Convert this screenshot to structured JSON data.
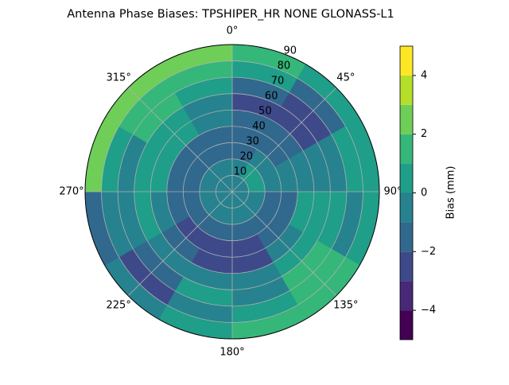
{
  "chart_data": {
    "type": "polar_contour",
    "title": "Antenna Phase Biases: TPSHIPER_HR     NONE GLONASS-L1",
    "theta_bins": [
      0,
      30,
      60,
      90,
      120,
      150,
      180,
      210,
      240,
      270,
      300,
      330,
      360
    ],
    "r_bins": [
      0,
      10,
      20,
      30,
      40,
      50,
      60,
      70,
      80,
      90
    ],
    "z": [
      [
        -0.5,
        -0.5,
        -0.5,
        -0.5,
        -0.5,
        -0.5,
        -0.5,
        -0.5,
        -0.5,
        -0.5,
        -0.5,
        -0.5
      ],
      [
        -0.5,
        0.5,
        0.5,
        -0.5,
        -0.5,
        -0.5,
        -0.5,
        -0.5,
        -0.5,
        -0.5,
        -0.5,
        -0.5
      ],
      [
        -1.5,
        -0.5,
        -0.5,
        -1.5,
        -1.5,
        -1.5,
        -1.5,
        -1.5,
        -1.5,
        -1.5,
        -1.5,
        -1.5
      ],
      [
        -1.5,
        -1.5,
        -0.5,
        -1.5,
        -1.5,
        -2.5,
        -2.5,
        -2.5,
        -1.5,
        -1.5,
        -1.5,
        -1.5
      ],
      [
        -1.5,
        -1.5,
        -0.5,
        0.5,
        -0.5,
        -2.5,
        -2.5,
        -1.5,
        -0.5,
        0.5,
        0.5,
        -0.5
      ],
      [
        -2.5,
        -2.5,
        -0.5,
        0.5,
        0.5,
        -0.5,
        -0.5,
        -0.5,
        0.5,
        0.5,
        0.5,
        -0.5
      ],
      [
        -1.5,
        -2.5,
        -0.5,
        0.5,
        1.5,
        -0.5,
        0.5,
        -1.5,
        -0.5,
        -0.5,
        1.5,
        0.5
      ],
      [
        0.5,
        -1.5,
        0.5,
        -0.5,
        1.5,
        0.5,
        -0.5,
        -2.5,
        -0.5,
        0.5,
        1.5,
        1.5
      ],
      [
        1.5,
        0.5,
        0.5,
        0.5,
        1.5,
        1.5,
        0.5,
        -0.5,
        -1.5,
        2.5,
        2.5,
        2.5
      ]
    ],
    "rlim": [
      0,
      90
    ],
    "rticks": [
      10,
      20,
      30,
      40,
      50,
      60,
      70,
      80,
      90
    ],
    "thetaticks": [
      {
        "value": 0,
        "label": "0°"
      },
      {
        "value": 45,
        "label": "45°"
      },
      {
        "value": 90,
        "label": "90°"
      },
      {
        "value": 135,
        "label": "135°"
      },
      {
        "value": 180,
        "label": "180°"
      },
      {
        "value": 225,
        "label": "225°"
      },
      {
        "value": 270,
        "label": "270°"
      },
      {
        "value": 315,
        "label": "315°"
      }
    ],
    "levels": [
      -5,
      -4,
      -3,
      -2,
      -1,
      0,
      1,
      2,
      3,
      4,
      5
    ],
    "colors": [
      "#440154",
      "#482878",
      "#3e4989",
      "#31688e",
      "#26828e",
      "#1f9e89",
      "#35b779",
      "#6ece58",
      "#b5de2b",
      "#fde725"
    ],
    "colorbar_label": "Bias (mm)",
    "colorbar_ticks": [
      {
        "value": -4,
        "label": "−4"
      },
      {
        "value": -2,
        "label": "−2"
      },
      0,
      2,
      4
    ],
    "grid": true
  }
}
